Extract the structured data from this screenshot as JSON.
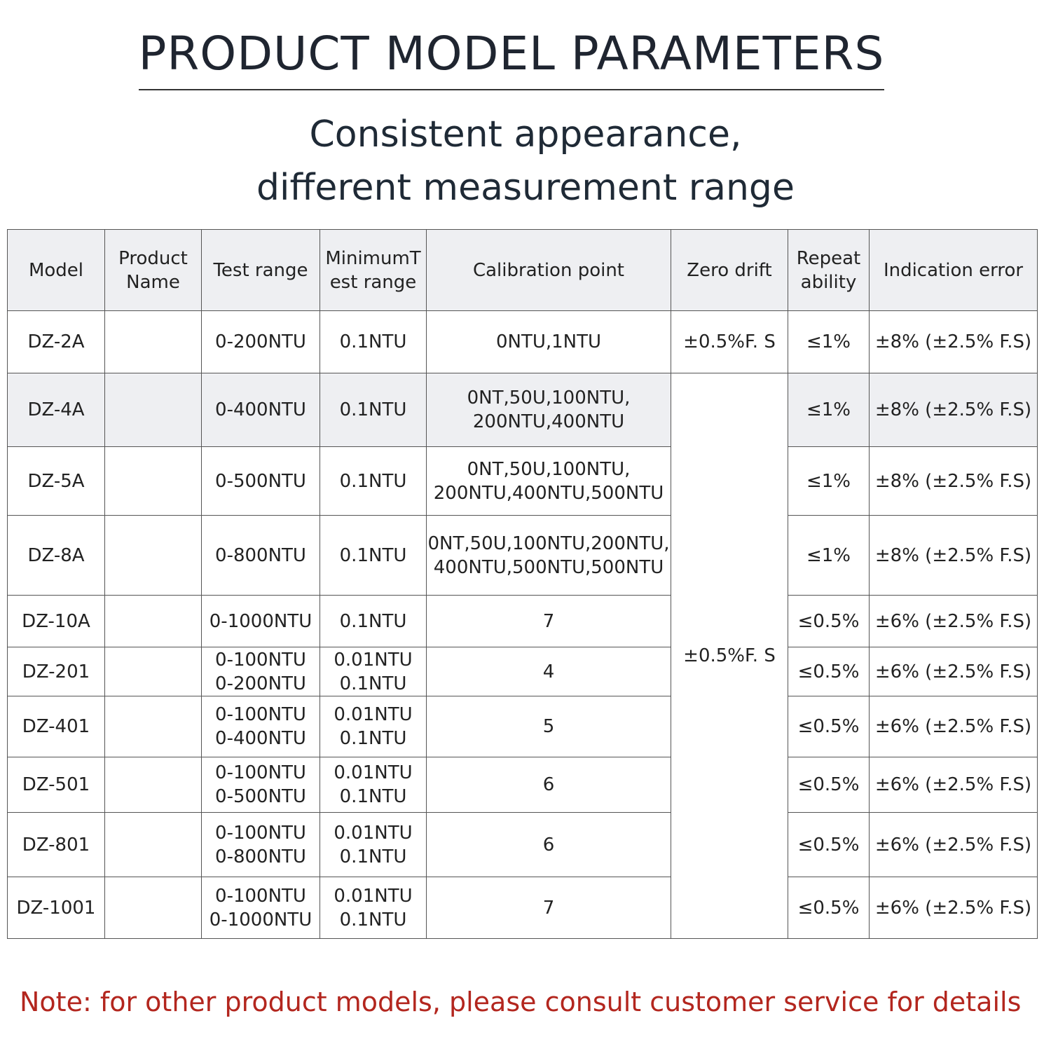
{
  "header": {
    "title": "PRODUCT MODEL PARAMETERS",
    "subtitle": [
      "Consistent appearance,",
      "different measurement range"
    ]
  },
  "table": {
    "columns": [
      [
        "Model"
      ],
      [
        "Product",
        "Name"
      ],
      [
        "Test range"
      ],
      [
        "MinimumT",
        "est range"
      ],
      [
        "Calibration point"
      ],
      [
        "Zero drift"
      ],
      [
        "Repeat",
        "ability"
      ],
      [
        "Indication error"
      ]
    ],
    "rows": [
      {
        "model": "DZ-2A",
        "test_range": [
          "0-200NTU"
        ],
        "min_range": [
          "0.1NTU"
        ],
        "calibration": [
          "0NTU,1NTU"
        ],
        "zero_drift": "±0.5%F. S",
        "repeatability": "≤1%",
        "indication_error": "±8% (±2.5% F.S)"
      },
      {
        "model": "DZ-4A",
        "test_range": [
          "0-400NTU"
        ],
        "min_range": [
          "0.1NTU"
        ],
        "calibration": [
          "0NT,50U,100NTU,",
          "200NTU,400NTU"
        ],
        "repeatability": "≤1%",
        "indication_error": "±8% (±2.5% F.S)"
      },
      {
        "model": "DZ-5A",
        "test_range": [
          "0-500NTU"
        ],
        "min_range": [
          "0.1NTU"
        ],
        "calibration": [
          "0NT,50U,100NTU,",
          "200NTU,400NTU,500NTU"
        ],
        "repeatability": "≤1%",
        "indication_error": "±8% (±2.5% F.S)"
      },
      {
        "model": "DZ-8A",
        "test_range": [
          "0-800NTU"
        ],
        "min_range": [
          "0.1NTU"
        ],
        "calibration": [
          "0NT,50U,100NTU,200NTU,",
          "400NTU,500NTU,500NTU"
        ],
        "repeatability": "≤1%",
        "indication_error": "±8% (±2.5% F.S)"
      },
      {
        "model": "DZ-10A",
        "test_range": [
          "0-1000NTU"
        ],
        "min_range": [
          "0.1NTU"
        ],
        "calibration": [
          "7"
        ],
        "repeatability": "≤0.5%",
        "indication_error": "±6% (±2.5% F.S)"
      },
      {
        "model": "DZ-201",
        "test_range": [
          "0-100NTU",
          "0-200NTU"
        ],
        "min_range": [
          "0.01NTU",
          "0.1NTU"
        ],
        "calibration": [
          "4"
        ],
        "repeatability": "≤0.5%",
        "indication_error": "±6% (±2.5% F.S)"
      },
      {
        "model": "DZ-401",
        "test_range": [
          "0-100NTU",
          "0-400NTU"
        ],
        "min_range": [
          "0.01NTU",
          "0.1NTU"
        ],
        "calibration": [
          "5"
        ],
        "repeatability": "≤0.5%",
        "indication_error": "±6% (±2.5% F.S)"
      },
      {
        "model": "DZ-501",
        "test_range": [
          "0-100NTU",
          "0-500NTU"
        ],
        "min_range": [
          "0.01NTU",
          "0.1NTU"
        ],
        "calibration": [
          "6"
        ],
        "repeatability": "≤0.5%",
        "indication_error": "±6% (±2.5% F.S)"
      },
      {
        "model": "DZ-801",
        "test_range": [
          "0-100NTU",
          "0-800NTU"
        ],
        "min_range": [
          "0.01NTU",
          "0.1NTU"
        ],
        "calibration": [
          "6"
        ],
        "repeatability": "≤0.5%",
        "indication_error": "±6% (±2.5% F.S)"
      },
      {
        "model": "DZ-1001",
        "test_range": [
          "0-100NTU",
          "0-1000NTU"
        ],
        "min_range": [
          "0.01NTU",
          "0.1NTU"
        ],
        "calibration": [
          "7"
        ],
        "repeatability": "≤0.5%",
        "indication_error": "±6% (±2.5% F.S)"
      }
    ],
    "merged_zero_drift": "±0.5%F. S"
  },
  "note": "Note: for other product models, please consult customer service for details"
}
